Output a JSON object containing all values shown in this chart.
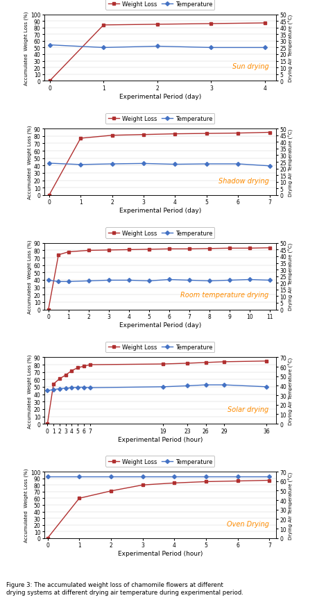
{
  "panels": [
    {
      "title": "Sun drying",
      "xlabel": "Experimental Period (day)",
      "xlim": [
        -0.1,
        4.2
      ],
      "xticks": [
        0,
        1,
        2,
        3,
        4
      ],
      "ylim_left": [
        0,
        100
      ],
      "yticks_left": [
        0,
        10,
        20,
        30,
        40,
        50,
        60,
        70,
        80,
        90,
        100
      ],
      "ylim_right": [
        0,
        50
      ],
      "yticks_right": [
        0,
        5,
        10,
        15,
        20,
        25,
        30,
        35,
        40,
        45,
        50
      ],
      "wl_x": [
        0,
        1,
        2,
        3,
        4
      ],
      "wl_y": [
        0,
        84,
        85,
        86,
        87
      ],
      "temp_x": [
        0,
        1,
        2,
        3,
        4
      ],
      "temp_y": [
        27,
        25,
        26,
        25,
        25
      ]
    },
    {
      "title": "Shadow drying",
      "xlabel": "Experimental Period (day)",
      "xlim": [
        -0.15,
        7.2
      ],
      "xticks": [
        0,
        1,
        2,
        3,
        4,
        5,
        6,
        7
      ],
      "ylim_left": [
        0,
        90
      ],
      "yticks_left": [
        0,
        10,
        20,
        30,
        40,
        50,
        60,
        70,
        80,
        90
      ],
      "ylim_right": [
        0,
        50
      ],
      "yticks_right": [
        0,
        5,
        10,
        15,
        20,
        25,
        30,
        35,
        40,
        45,
        50
      ],
      "wl_x": [
        0,
        1,
        2,
        3,
        4,
        5,
        6,
        7
      ],
      "wl_y": [
        0,
        77,
        81,
        82,
        83,
        83.5,
        84,
        85
      ],
      "temp_x": [
        0,
        1,
        2,
        3,
        4,
        5,
        6,
        7
      ],
      "temp_y": [
        24,
        23,
        23.5,
        23.8,
        23.2,
        23.5,
        23.5,
        22
      ]
    },
    {
      "title": "Room temperature drying",
      "xlabel": "Experimental Period (day)",
      "xlim": [
        -0.2,
        11.3
      ],
      "xticks": [
        0,
        1,
        2,
        3,
        4,
        5,
        6,
        7,
        8,
        9,
        10,
        11
      ],
      "ylim_left": [
        0,
        90
      ],
      "yticks_left": [
        0,
        10,
        20,
        30,
        40,
        50,
        60,
        70,
        80,
        90
      ],
      "ylim_right": [
        0,
        50
      ],
      "yticks_right": [
        0,
        5,
        10,
        15,
        20,
        25,
        30,
        35,
        40,
        45,
        50
      ],
      "wl_x": [
        0,
        0.5,
        1,
        2,
        3,
        4,
        5,
        6,
        7,
        8,
        9,
        10,
        11
      ],
      "wl_y": [
        0,
        74,
        78,
        80,
        80.5,
        81,
        81.5,
        82,
        82,
        82.5,
        83,
        83,
        83.5
      ],
      "temp_x": [
        0,
        0.5,
        1,
        2,
        3,
        4,
        5,
        6,
        7,
        8,
        9,
        10,
        11
      ],
      "temp_y": [
        22,
        21,
        21,
        21.5,
        22,
        22,
        21.5,
        22.5,
        22,
        21.5,
        22,
        22.5,
        22
      ]
    },
    {
      "title": "Solar drying",
      "xlabel": "Experimental Period (hour)",
      "xlim": [
        -0.5,
        37.5
      ],
      "xticks": [
        0,
        1,
        2,
        3,
        4,
        5,
        6,
        7,
        19,
        23,
        26,
        29,
        36
      ],
      "ylim_left": [
        0,
        90
      ],
      "yticks_left": [
        0,
        10,
        20,
        30,
        40,
        50,
        60,
        70,
        80,
        90
      ],
      "ylim_right": [
        0,
        70
      ],
      "yticks_right": [
        0,
        10,
        20,
        30,
        40,
        50,
        60,
        70
      ],
      "wl_x": [
        0,
        1,
        2,
        3,
        4,
        5,
        6,
        7,
        19,
        23,
        26,
        29,
        36
      ],
      "wl_y": [
        0,
        54,
        61,
        66,
        72,
        76,
        78,
        80,
        81,
        82,
        83,
        84,
        85
      ],
      "temp_x": [
        0,
        1,
        2,
        3,
        4,
        5,
        6,
        7,
        19,
        23,
        26,
        29,
        36
      ],
      "temp_y": [
        35,
        36,
        37,
        37.5,
        38,
        38.5,
        38.5,
        38,
        39,
        40,
        41,
        41,
        39
      ]
    },
    {
      "title": "Oven Drying",
      "xlabel": "Experimental Period (hour)",
      "xlim": [
        -0.1,
        7.2
      ],
      "xticks": [
        0,
        1,
        2,
        3,
        4,
        5,
        6,
        7
      ],
      "ylim_left": [
        0,
        100
      ],
      "yticks_left": [
        0,
        10,
        20,
        30,
        40,
        50,
        60,
        70,
        80,
        90,
        100
      ],
      "ylim_right": [
        0,
        70
      ],
      "yticks_right": [
        0,
        10,
        20,
        30,
        40,
        50,
        60,
        70
      ],
      "wl_x": [
        0,
        1,
        2,
        3,
        4,
        5,
        6,
        7
      ],
      "wl_y": [
        0,
        60,
        71,
        80,
        83,
        85,
        86,
        87
      ],
      "temp_x": [
        0,
        1,
        2,
        3,
        4,
        5,
        6,
        7
      ],
      "temp_y": [
        65,
        65,
        65,
        65,
        65,
        65,
        65,
        65
      ]
    }
  ],
  "wl_color": "#B03030",
  "temp_color": "#4472C4",
  "wl_marker": "s",
  "temp_marker": "D",
  "title_color": "#FF8C00",
  "ylabel_left": "Accumulated  Weight Loss (%)",
  "ylabel_right": "Drying Air Temperature (°C)",
  "legend_wl": "Weight Loss",
  "legend_temp": "Temperature",
  "caption": "Figure 3: The accumulated weight loss of chamomile flowers at different\ndrying systems at different drying air temperature during experimental period."
}
